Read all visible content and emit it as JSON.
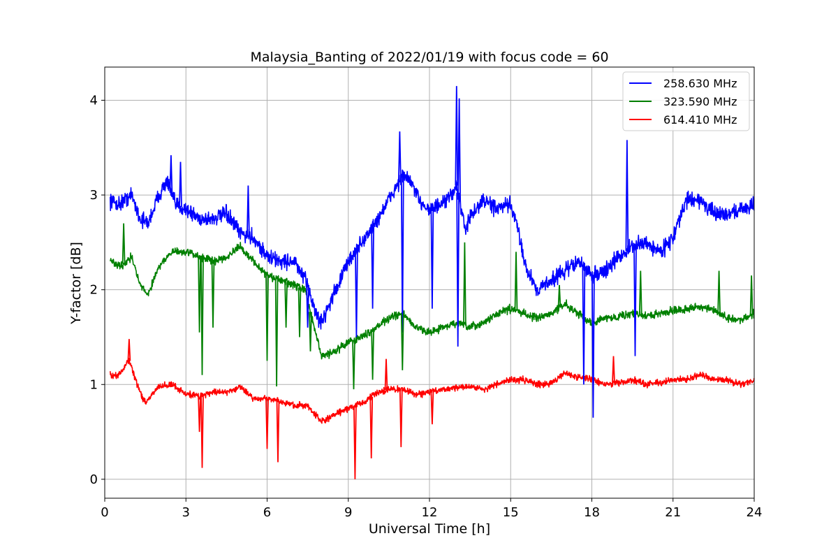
{
  "chart_data": {
    "type": "line",
    "title": "Malaysia_Banting of 2022/01/19 with focus code = 60",
    "xlabel": "Universal Time [h]",
    "ylabel": "Y-factor [dB]",
    "xlim": [
      0,
      24
    ],
    "ylim": [
      -0.2,
      4.35
    ],
    "xticks": [
      0,
      3,
      6,
      9,
      12,
      15,
      18,
      21,
      24
    ],
    "yticks": [
      0,
      1,
      2,
      3,
      4
    ],
    "grid": true,
    "legend_position": "top-right",
    "series": [
      {
        "name": "258.630 MHz",
        "color": "#0000ff",
        "noise": 0.12,
        "x": [
          0.2,
          0.5,
          1.0,
          1.3,
          1.6,
          2.0,
          2.3,
          2.6,
          3.0,
          3.5,
          4.0,
          4.5,
          5.0,
          5.5,
          6.0,
          6.5,
          7.0,
          7.5,
          7.8,
          8.0,
          8.3,
          8.7,
          9.0,
          9.5,
          10.0,
          10.5,
          11.0,
          11.3,
          11.6,
          12.0,
          12.5,
          12.8,
          13.0,
          13.3,
          13.6,
          14.0,
          14.5,
          15.0,
          15.3,
          15.6,
          16.0,
          16.5,
          17.0,
          17.5,
          18.0,
          18.5,
          19.0,
          19.5,
          20.0,
          20.5,
          21.0,
          21.5,
          22.0,
          22.5,
          23.0,
          23.5,
          24.0
        ],
        "y": [
          2.95,
          2.9,
          3.0,
          2.75,
          2.7,
          3.0,
          3.15,
          2.9,
          2.85,
          2.75,
          2.75,
          2.8,
          2.6,
          2.55,
          2.35,
          2.3,
          2.3,
          2.05,
          1.75,
          1.65,
          1.85,
          2.1,
          2.3,
          2.5,
          2.7,
          2.95,
          3.2,
          3.15,
          2.95,
          2.85,
          2.9,
          3.0,
          3.1,
          2.65,
          2.8,
          2.95,
          2.85,
          2.9,
          2.6,
          2.2,
          2.0,
          2.1,
          2.2,
          2.3,
          2.15,
          2.2,
          2.35,
          2.45,
          2.5,
          2.4,
          2.55,
          2.95,
          2.95,
          2.8,
          2.8,
          2.85,
          2.9
        ]
      },
      {
        "name": "323.590 MHz",
        "color": "#008000",
        "noise": 0.06,
        "x": [
          0.2,
          0.6,
          1.0,
          1.3,
          1.6,
          2.0,
          2.5,
          3.0,
          3.5,
          4.0,
          4.5,
          5.0,
          5.5,
          6.0,
          6.5,
          7.0,
          7.4,
          7.7,
          8.0,
          8.5,
          9.0,
          9.5,
          10.0,
          10.5,
          11.0,
          11.5,
          12.0,
          12.5,
          13.0,
          13.5,
          14.0,
          14.5,
          15.0,
          15.5,
          16.0,
          16.5,
          17.0,
          17.5,
          18.0,
          18.5,
          19.0,
          19.5,
          20.0,
          20.5,
          21.0,
          21.5,
          22.0,
          22.5,
          23.0,
          23.5,
          24.0
        ],
        "y": [
          2.3,
          2.25,
          2.35,
          2.05,
          1.95,
          2.25,
          2.4,
          2.4,
          2.35,
          2.3,
          2.35,
          2.45,
          2.3,
          2.15,
          2.1,
          2.05,
          2.0,
          1.65,
          1.3,
          1.35,
          1.45,
          1.5,
          1.6,
          1.7,
          1.75,
          1.6,
          1.55,
          1.6,
          1.65,
          1.6,
          1.65,
          1.75,
          1.8,
          1.75,
          1.7,
          1.75,
          1.85,
          1.75,
          1.65,
          1.7,
          1.72,
          1.75,
          1.72,
          1.75,
          1.78,
          1.8,
          1.82,
          1.78,
          1.7,
          1.68,
          1.75
        ]
      },
      {
        "name": "614.410 MHz",
        "color": "#ff0000",
        "noise": 0.05,
        "x": [
          0.2,
          0.5,
          0.9,
          1.2,
          1.5,
          2.0,
          2.5,
          3.0,
          3.5,
          4.0,
          4.5,
          5.0,
          5.5,
          6.0,
          6.5,
          7.0,
          7.5,
          8.0,
          8.5,
          9.0,
          9.5,
          10.0,
          10.5,
          11.0,
          11.5,
          12.0,
          12.5,
          13.0,
          13.5,
          14.0,
          14.5,
          15.0,
          15.5,
          16.0,
          16.5,
          17.0,
          17.5,
          18.0,
          18.5,
          19.0,
          19.5,
          20.0,
          20.5,
          21.0,
          21.5,
          22.0,
          22.5,
          23.0,
          23.5,
          24.0
        ],
        "y": [
          1.1,
          1.1,
          1.25,
          1.0,
          0.8,
          0.98,
          1.0,
          0.9,
          0.88,
          0.92,
          0.92,
          0.98,
          0.85,
          0.85,
          0.82,
          0.78,
          0.78,
          0.6,
          0.68,
          0.75,
          0.8,
          0.9,
          0.95,
          0.95,
          0.9,
          0.92,
          0.95,
          0.97,
          0.98,
          0.95,
          1.0,
          1.05,
          1.05,
          1.0,
          1.02,
          1.12,
          1.08,
          1.05,
          1.0,
          1.02,
          1.05,
          1.0,
          1.02,
          1.05,
          1.05,
          1.1,
          1.05,
          1.05,
          1.0,
          1.05
        ]
      }
    ],
    "spikes": [
      {
        "series": 0,
        "x": 2.45,
        "y": 3.42
      },
      {
        "series": 0,
        "x": 2.8,
        "y": 3.35
      },
      {
        "series": 0,
        "x": 5.3,
        "y": 3.1
      },
      {
        "series": 0,
        "x": 7.5,
        "y": 1.6
      },
      {
        "series": 0,
        "x": 9.3,
        "y": 1.5
      },
      {
        "series": 0,
        "x": 9.9,
        "y": 1.8
      },
      {
        "series": 0,
        "x": 10.9,
        "y": 3.67
      },
      {
        "series": 0,
        "x": 11.0,
        "y": 1.55
      },
      {
        "series": 0,
        "x": 12.1,
        "y": 1.8
      },
      {
        "series": 0,
        "x": 13.0,
        "y": 4.15
      },
      {
        "series": 0,
        "x": 13.05,
        "y": 1.4
      },
      {
        "series": 0,
        "x": 13.1,
        "y": 4.02
      },
      {
        "series": 0,
        "x": 17.7,
        "y": 1.0
      },
      {
        "series": 0,
        "x": 18.05,
        "y": 0.65
      },
      {
        "series": 0,
        "x": 19.3,
        "y": 3.58
      },
      {
        "series": 0,
        "x": 19.6,
        "y": 1.3
      },
      {
        "series": 1,
        "x": 0.7,
        "y": 2.7
      },
      {
        "series": 1,
        "x": 3.5,
        "y": 1.55
      },
      {
        "series": 1,
        "x": 3.6,
        "y": 1.1
      },
      {
        "series": 1,
        "x": 4.0,
        "y": 1.6
      },
      {
        "series": 1,
        "x": 6.0,
        "y": 1.25
      },
      {
        "series": 1,
        "x": 6.35,
        "y": 0.98
      },
      {
        "series": 1,
        "x": 6.7,
        "y": 1.6
      },
      {
        "series": 1,
        "x": 7.2,
        "y": 1.5
      },
      {
        "series": 1,
        "x": 7.6,
        "y": 1.35
      },
      {
        "series": 1,
        "x": 9.2,
        "y": 0.95
      },
      {
        "series": 1,
        "x": 9.9,
        "y": 1.05
      },
      {
        "series": 1,
        "x": 11.0,
        "y": 1.15
      },
      {
        "series": 1,
        "x": 13.3,
        "y": 2.5
      },
      {
        "series": 1,
        "x": 15.2,
        "y": 2.4
      },
      {
        "series": 1,
        "x": 16.8,
        "y": 2.05
      },
      {
        "series": 1,
        "x": 19.8,
        "y": 2.2
      },
      {
        "series": 1,
        "x": 22.7,
        "y": 2.2
      },
      {
        "series": 1,
        "x": 23.9,
        "y": 2.15
      },
      {
        "series": 2,
        "x": 0.9,
        "y": 1.48
      },
      {
        "series": 2,
        "x": 3.5,
        "y": 0.5
      },
      {
        "series": 2,
        "x": 3.6,
        "y": 0.12
      },
      {
        "series": 2,
        "x": 6.0,
        "y": 0.32
      },
      {
        "series": 2,
        "x": 6.4,
        "y": 0.18
      },
      {
        "series": 2,
        "x": 9.25,
        "y": 0.0
      },
      {
        "series": 2,
        "x": 9.85,
        "y": 0.22
      },
      {
        "series": 2,
        "x": 10.4,
        "y": 1.27
      },
      {
        "series": 2,
        "x": 10.95,
        "y": 0.34
      },
      {
        "series": 2,
        "x": 12.1,
        "y": 0.58
      },
      {
        "series": 2,
        "x": 18.8,
        "y": 1.3
      }
    ]
  }
}
